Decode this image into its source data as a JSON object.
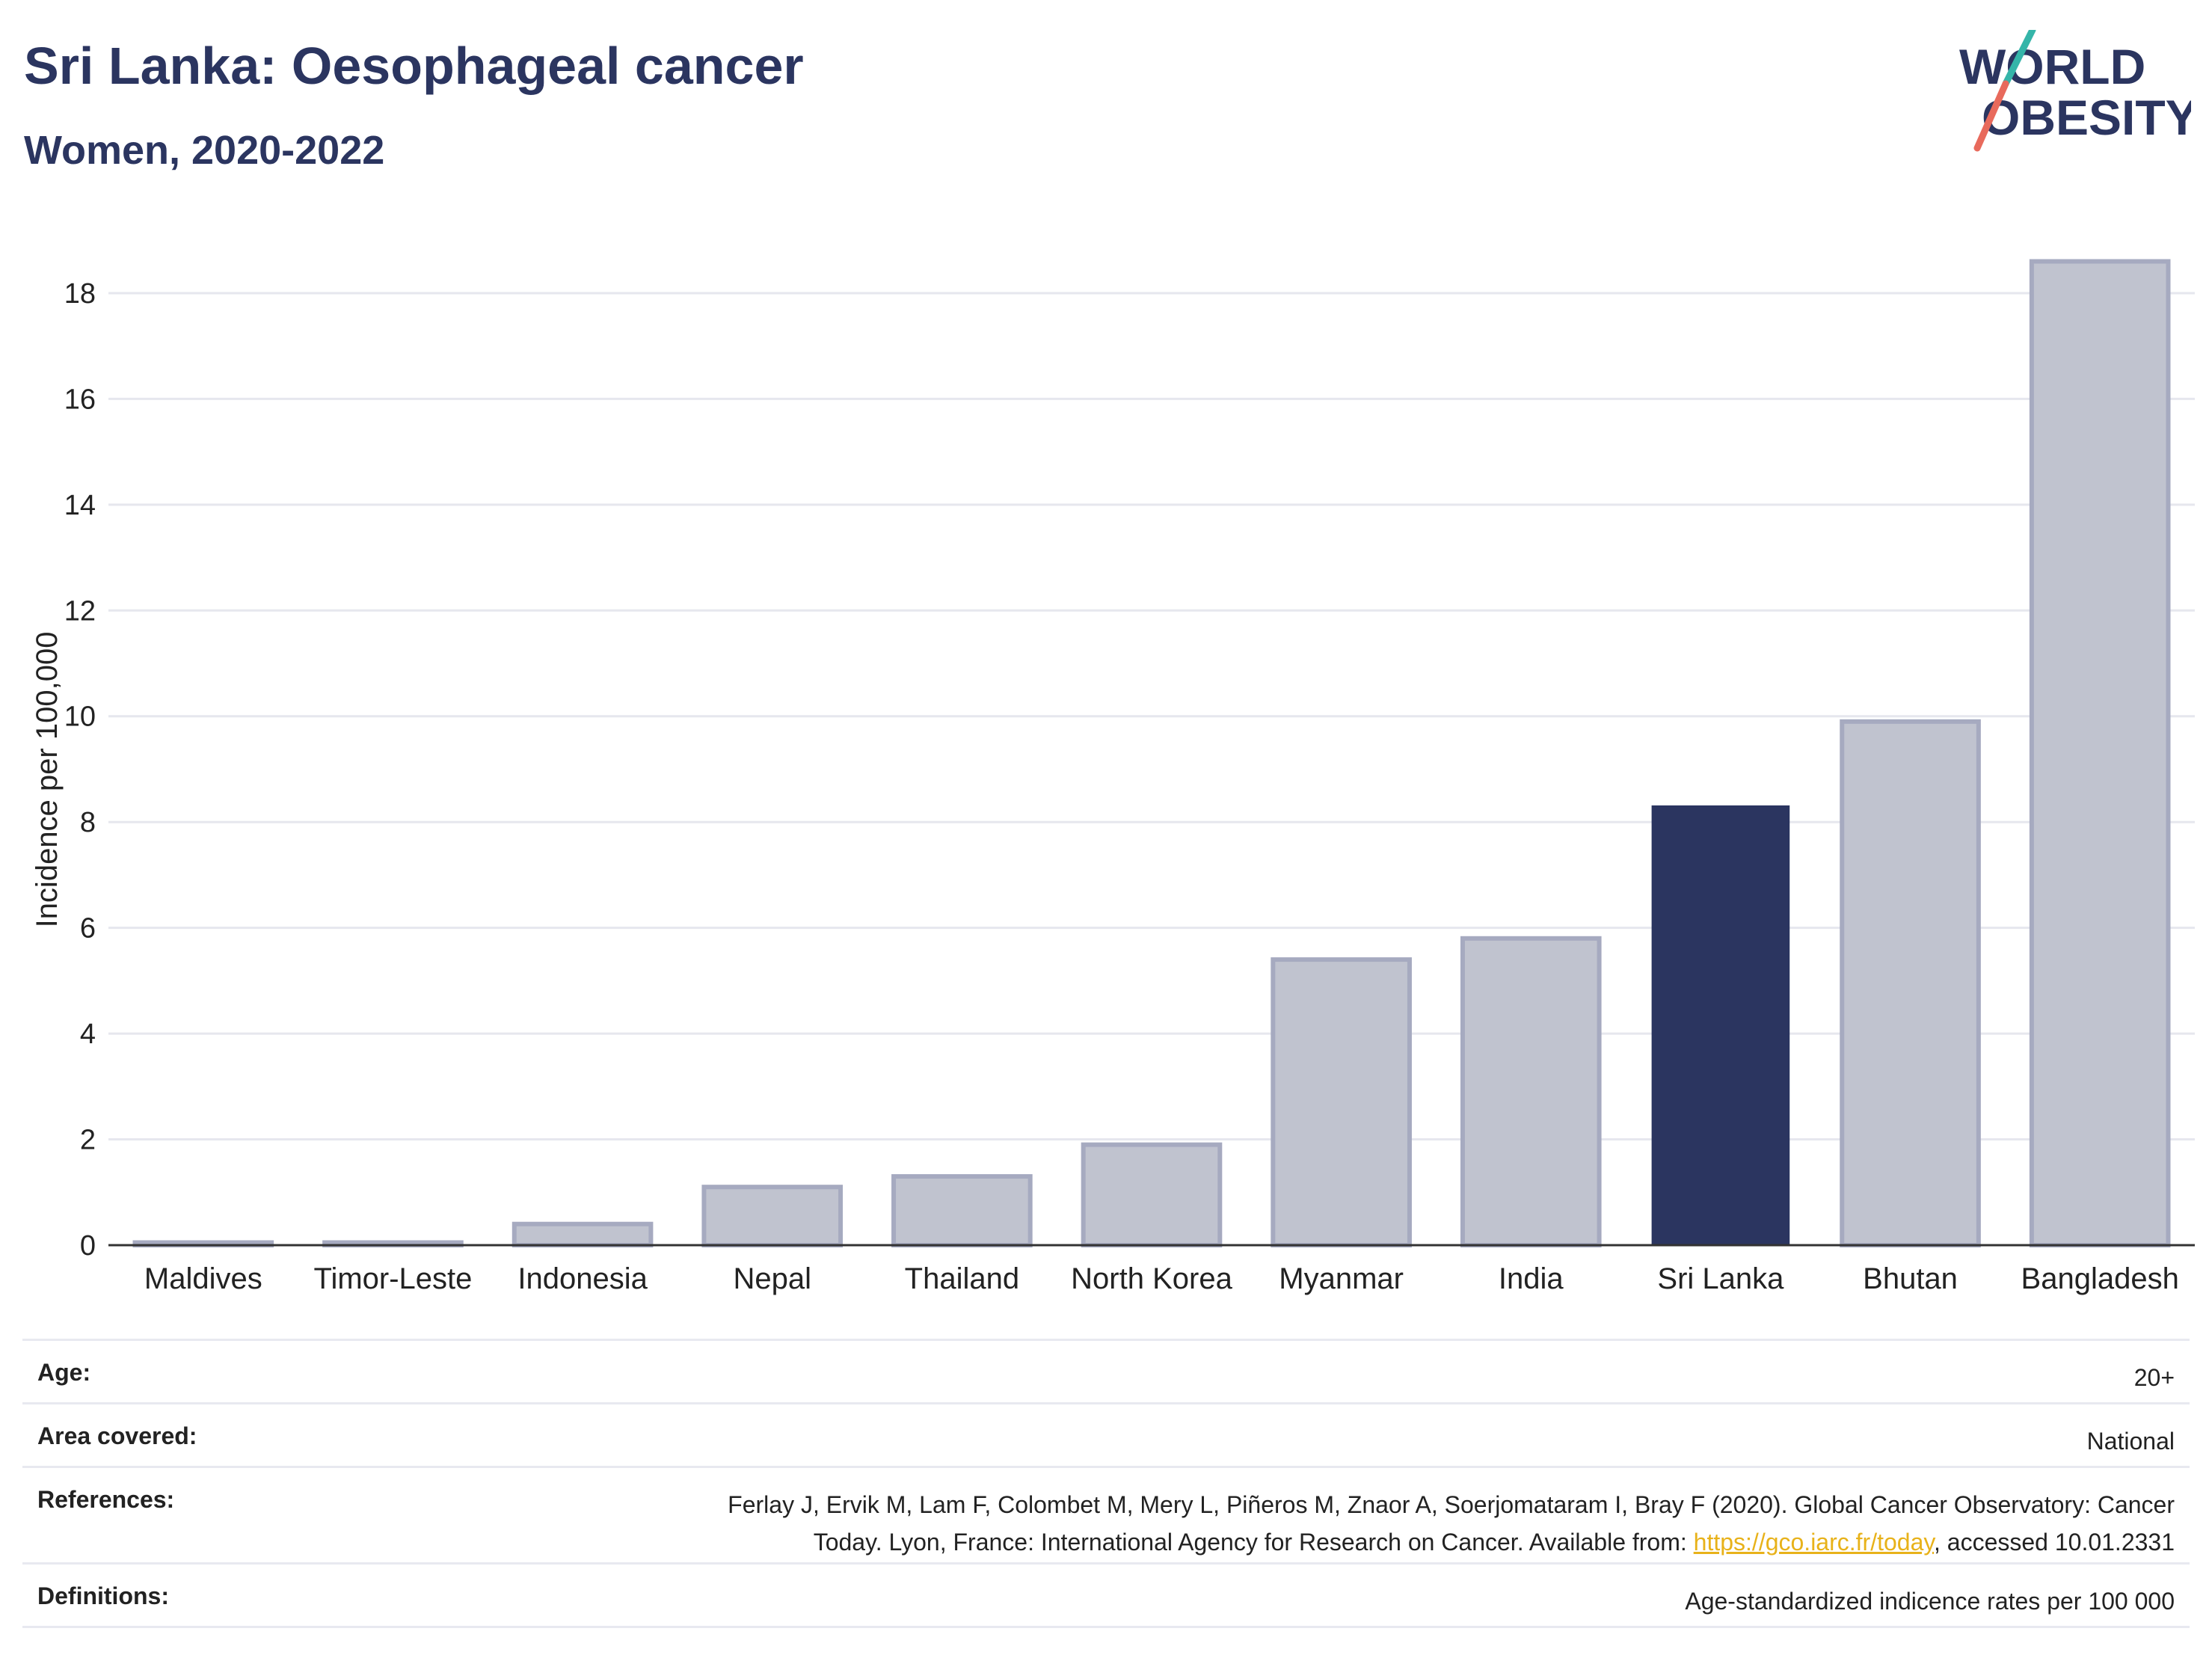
{
  "header": {
    "title": "Sri Lanka: Oesophageal cancer",
    "subtitle": "Women, 2020-2022"
  },
  "logo": {
    "line1": "WORLD",
    "line2": "OBESITY"
  },
  "chart_data": {
    "type": "bar",
    "categories": [
      "Maldives",
      "Timor-Leste",
      "Indonesia",
      "Nepal",
      "Thailand",
      "North Korea",
      "Myanmar",
      "India",
      "Sri Lanka",
      "Bhutan",
      "Bangladesh"
    ],
    "values": [
      0.05,
      0.05,
      0.4,
      1.1,
      1.3,
      1.9,
      5.4,
      5.8,
      8.3,
      9.9,
      18.6
    ],
    "highlight": "Sri Lanka",
    "ylabel": "Incidence per 100,000",
    "ylim": [
      0,
      19.3
    ],
    "yticks": [
      0,
      2,
      4,
      6,
      8,
      10,
      12,
      14,
      16,
      18
    ],
    "grid": true,
    "colors": {
      "highlight": "#2b3560",
      "other": "#c0c3cf",
      "other_border": "#a6aac0"
    }
  },
  "meta": {
    "age": {
      "label": "Age:",
      "value": "20+"
    },
    "area": {
      "label": "Area covered:",
      "value": "National"
    },
    "references": {
      "label": "References:",
      "line1": "Ferlay J, Ervik M, Lam F, Colombet M, Mery L, Piñeros M, Znaor A, Soerjomataram I, Bray F (2020). Global Cancer Observatory: Cancer",
      "line2_before": "Today. Lyon, France: International Agency for Research on Cancer. Available from: ",
      "link": "https://gco.iarc.fr/today",
      "line2_after": ", accessed 10.01.2331"
    },
    "definitions": {
      "label": "Definitions:",
      "value": "Age-standardized indicence rates per 100 000"
    }
  }
}
